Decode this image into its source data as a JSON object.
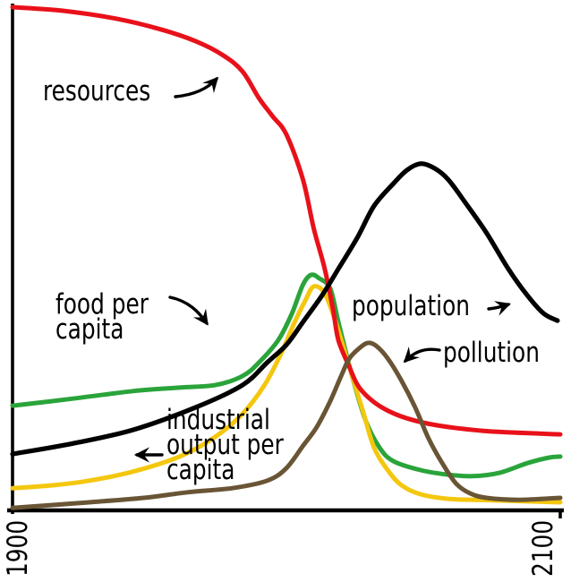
{
  "page": {
    "background": "#ffffff"
  },
  "chart_data": {
    "type": "line",
    "title": "",
    "xlabel": "",
    "ylabel": "",
    "xlim": [
      1900,
      2100
    ],
    "ylim": [
      0,
      100
    ],
    "x_tick_labels": [
      "1900",
      "2100"
    ],
    "grid": false,
    "legend_position": "inline-annotations",
    "axis_color": "#000000",
    "series": [
      {
        "name": "food per capita",
        "color": "#2aa43a",
        "points": [
          [
            1900,
            20.8
          ],
          [
            1922,
            22.2
          ],
          [
            1944,
            23.7
          ],
          [
            1961,
            24.4
          ],
          [
            1974,
            24.9
          ],
          [
            1984,
            26.7
          ],
          [
            1990,
            29.4
          ],
          [
            1997,
            33.8
          ],
          [
            2002,
            39.1
          ],
          [
            2006,
            44.8
          ],
          [
            2009,
            46.8
          ],
          [
            2012,
            46.1
          ],
          [
            2016,
            44.1
          ],
          [
            2019,
            37.4
          ],
          [
            2024,
            26.7
          ],
          [
            2029,
            17.8
          ],
          [
            2034,
            12.5
          ],
          [
            2039,
            9.8
          ],
          [
            2049,
            8.0
          ],
          [
            2059,
            7.1
          ],
          [
            2068,
            6.8
          ],
          [
            2078,
            7.5
          ],
          [
            2088,
            9.4
          ],
          [
            2096,
            10.5
          ],
          [
            2100,
            10.7
          ]
        ]
      },
      {
        "name": "industrial output per capita",
        "color": "#f4c70f",
        "points": [
          [
            1900,
            4.4
          ],
          [
            1915,
            5.0
          ],
          [
            1928,
            5.9
          ],
          [
            1944,
            7.7
          ],
          [
            1961,
            10.7
          ],
          [
            1974,
            14.6
          ],
          [
            1984,
            19.2
          ],
          [
            1992,
            24.9
          ],
          [
            1998,
            31.1
          ],
          [
            2003,
            37.4
          ],
          [
            2007,
            41.8
          ],
          [
            2010,
            44.5
          ],
          [
            2014,
            43.1
          ],
          [
            2018,
            37.4
          ],
          [
            2023,
            28.5
          ],
          [
            2028,
            19.6
          ],
          [
            2032,
            12.5
          ],
          [
            2037,
            8.0
          ],
          [
            2042,
            5.0
          ],
          [
            2049,
            3.2
          ],
          [
            2059,
            2.3
          ],
          [
            2075,
            2.0
          ],
          [
            2100,
            1.6
          ]
        ]
      },
      {
        "name": "resources",
        "color": "#e8111a",
        "points": [
          [
            1900,
            100
          ],
          [
            1918,
            99.3
          ],
          [
            1938,
            97.7
          ],
          [
            1954,
            95.6
          ],
          [
            1967,
            93.2
          ],
          [
            1977,
            90.4
          ],
          [
            1984,
            87.2
          ],
          [
            1990,
            81.9
          ],
          [
            1995,
            78.3
          ],
          [
            2000,
            74.7
          ],
          [
            2006,
            65.8
          ],
          [
            2010,
            56.0
          ],
          [
            2014,
            48.0
          ],
          [
            2017,
            40.0
          ],
          [
            2019,
            33.8
          ],
          [
            2023,
            28.5
          ],
          [
            2026,
            24.9
          ],
          [
            2030,
            22.4
          ],
          [
            2036,
            20.1
          ],
          [
            2044,
            18.3
          ],
          [
            2055,
            16.9
          ],
          [
            2072,
            15.8
          ],
          [
            2091,
            15.3
          ],
          [
            2100,
            15.1
          ]
        ]
      },
      {
        "name": "population",
        "color": "#000000",
        "points": [
          [
            1900,
            11.2
          ],
          [
            1922,
            13.3
          ],
          [
            1944,
            16.0
          ],
          [
            1967,
            20.5
          ],
          [
            1984,
            24.9
          ],
          [
            1993,
            29.4
          ],
          [
            2000,
            32.9
          ],
          [
            2006,
            37.4
          ],
          [
            2013,
            42.7
          ],
          [
            2019,
            48.0
          ],
          [
            2026,
            54.3
          ],
          [
            2032,
            60.5
          ],
          [
            2039,
            64.9
          ],
          [
            2044,
            67.6
          ],
          [
            2049,
            68.9
          ],
          [
            2054,
            68.0
          ],
          [
            2059,
            65.8
          ],
          [
            2065,
            61.4
          ],
          [
            2073,
            55.2
          ],
          [
            2081,
            48.0
          ],
          [
            2088,
            42.7
          ],
          [
            2094,
            39.1
          ],
          [
            2099,
            37.7
          ]
        ]
      },
      {
        "name": "pollution",
        "color": "#695535",
        "points": [
          [
            1900,
            0.5
          ],
          [
            1928,
            1.6
          ],
          [
            1948,
            2.5
          ],
          [
            1964,
            3.6
          ],
          [
            1980,
            4.4
          ],
          [
            1993,
            5.9
          ],
          [
            2000,
            8.4
          ],
          [
            2006,
            12.8
          ],
          [
            2011,
            16.5
          ],
          [
            2016,
            21.7
          ],
          [
            2020,
            26.7
          ],
          [
            2023,
            30.2
          ],
          [
            2027,
            32.4
          ],
          [
            2030,
            33.3
          ],
          [
            2033,
            32.6
          ],
          [
            2037,
            30.2
          ],
          [
            2042,
            25.8
          ],
          [
            2047,
            20.5
          ],
          [
            2052,
            14.2
          ],
          [
            2057,
            9.3
          ],
          [
            2062,
            5.3
          ],
          [
            2067,
            3.4
          ],
          [
            2073,
            2.5
          ],
          [
            2085,
            2.1
          ],
          [
            2100,
            2.5
          ]
        ]
      }
    ],
    "annotations": [
      {
        "id": "resources",
        "label": "resources"
      },
      {
        "id": "food-per-capita",
        "label": "food per\ncapita"
      },
      {
        "id": "population",
        "label": "population"
      },
      {
        "id": "pollution",
        "label": "pollution"
      },
      {
        "id": "industrial-output-per-capita",
        "label": "industrial\noutput per\ncapita"
      }
    ]
  }
}
